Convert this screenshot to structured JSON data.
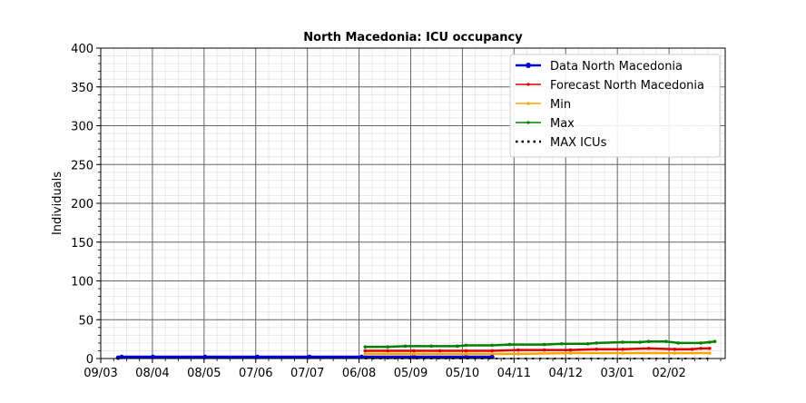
{
  "chart_data": {
    "type": "line",
    "title": "North Macedonia: ICU occupancy",
    "xlabel": "",
    "ylabel": "Individuals",
    "ylim": [
      0,
      400
    ],
    "yticks": [
      0,
      50,
      100,
      150,
      200,
      250,
      300,
      350,
      400
    ],
    "x_tick_labels": [
      "09/03",
      "08/04",
      "08/05",
      "07/06",
      "07/07",
      "06/08",
      "05/09",
      "05/10",
      "04/11",
      "04/12",
      "03/01",
      "02/02"
    ],
    "x_range_days": [
      0,
      359
    ],
    "grid": true,
    "legend_position": "top-right",
    "series": [
      {
        "name": "Data North Macedonia",
        "color": "#0000dd",
        "style": "data",
        "points": [
          [
            10,
            1
          ],
          [
            12,
            2
          ],
          [
            30,
            2
          ],
          [
            60,
            2
          ],
          [
            90,
            2
          ],
          [
            120,
            2
          ],
          [
            150,
            2
          ],
          [
            180,
            2
          ],
          [
            210,
            2
          ],
          [
            225,
            2
          ]
        ]
      },
      {
        "name": "Forecast North Macedonia",
        "color": "#dd0000",
        "style": "forecast",
        "points": [
          [
            152,
            10
          ],
          [
            165,
            10
          ],
          [
            180,
            10
          ],
          [
            195,
            10
          ],
          [
            210,
            10
          ],
          [
            225,
            10
          ],
          [
            240,
            11
          ],
          [
            255,
            11
          ],
          [
            270,
            11
          ],
          [
            285,
            12
          ],
          [
            300,
            12
          ],
          [
            315,
            13
          ],
          [
            330,
            12
          ],
          [
            340,
            12
          ],
          [
            345,
            13
          ],
          [
            350,
            13
          ]
        ]
      },
      {
        "name": "Min",
        "color": "#ffa500",
        "style": "forecast",
        "points": [
          [
            152,
            6
          ],
          [
            180,
            6
          ],
          [
            210,
            6
          ],
          [
            240,
            6
          ],
          [
            270,
            7
          ],
          [
            300,
            7
          ],
          [
            330,
            7
          ],
          [
            350,
            7
          ]
        ]
      },
      {
        "name": "Max",
        "color": "#008000",
        "style": "forecast",
        "points": [
          [
            152,
            15
          ],
          [
            165,
            15
          ],
          [
            175,
            16
          ],
          [
            190,
            16
          ],
          [
            205,
            16
          ],
          [
            210,
            17
          ],
          [
            225,
            17
          ],
          [
            235,
            18
          ],
          [
            255,
            18
          ],
          [
            265,
            19
          ],
          [
            280,
            19
          ],
          [
            285,
            20
          ],
          [
            300,
            21
          ],
          [
            310,
            21
          ],
          [
            315,
            22
          ],
          [
            325,
            22
          ],
          [
            332,
            20
          ],
          [
            345,
            20
          ],
          [
            350,
            21
          ],
          [
            353,
            22
          ]
        ]
      },
      {
        "name": "MAX ICUs",
        "color": "#000000",
        "style": "dotted",
        "points": [
          [
            152,
            0
          ],
          [
            350,
            0
          ]
        ]
      }
    ]
  }
}
